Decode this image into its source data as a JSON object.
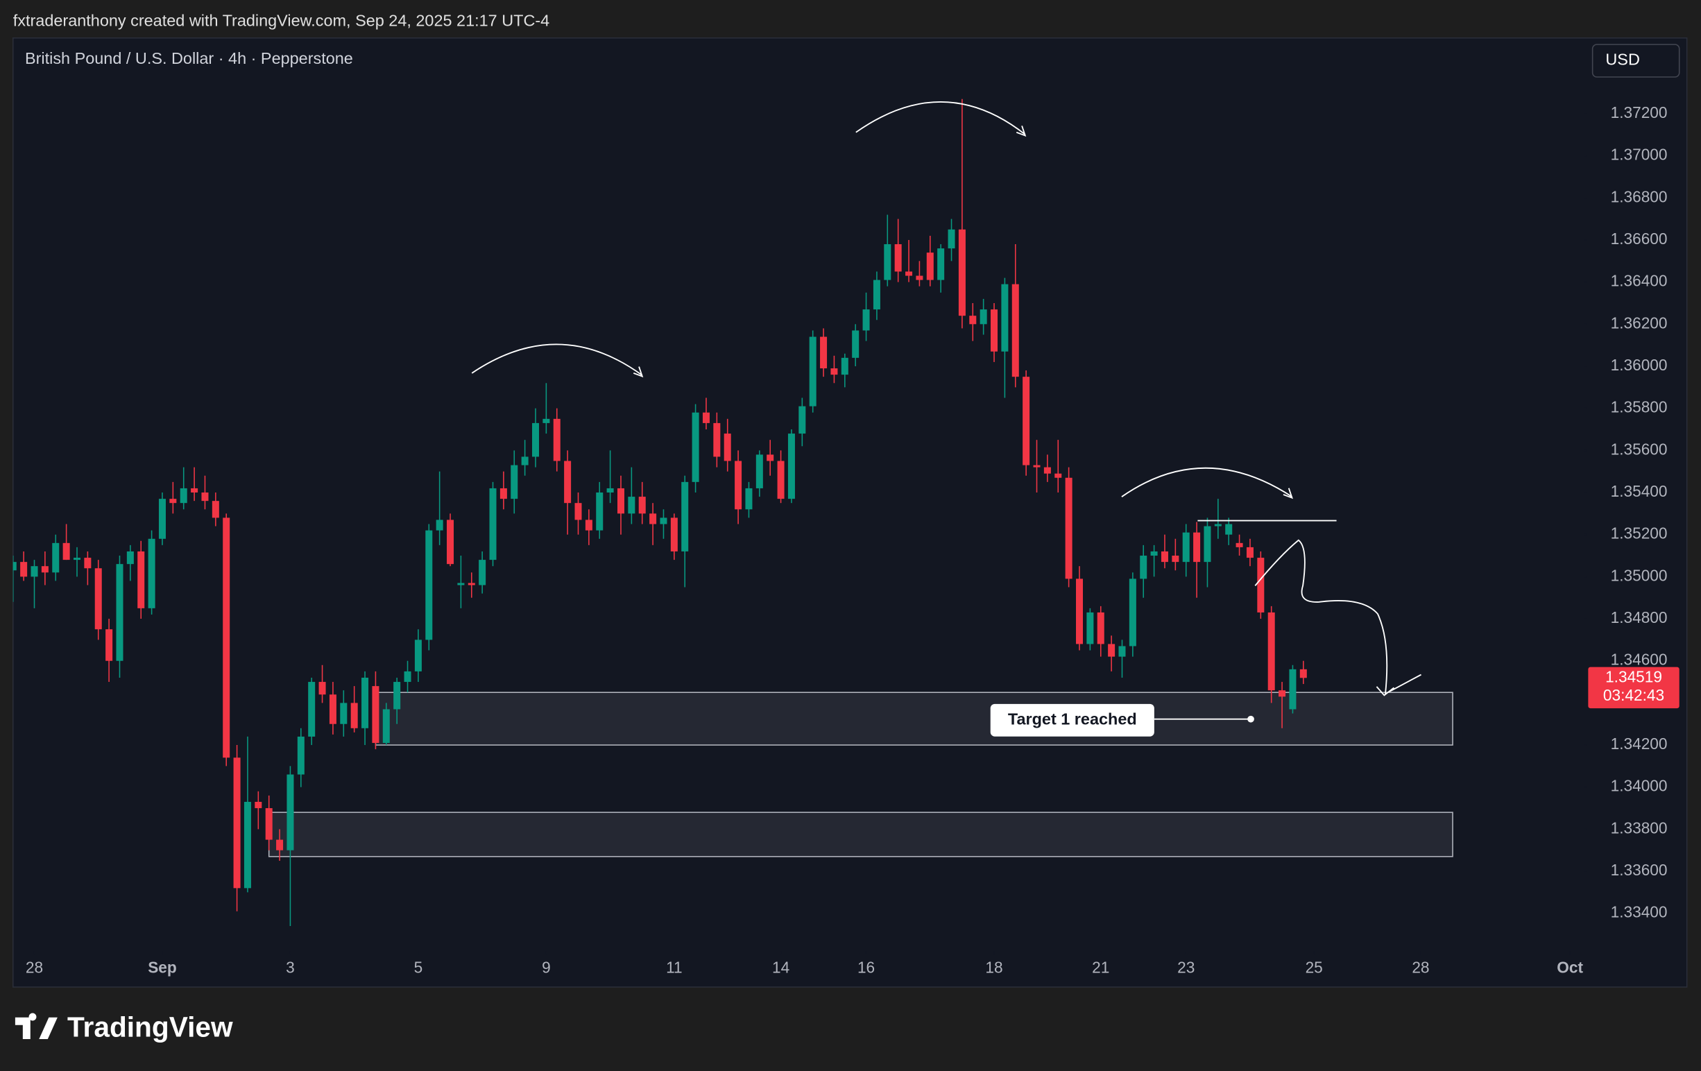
{
  "header": {
    "attribution": "fxtraderanthony created with TradingView.com, Sep 24, 2025 21:17 UTC-4",
    "logo": "TradingView"
  },
  "chart_data": {
    "type": "candlestick",
    "title": "British Pound / U.S. Dollar · 4h · Pepperstone",
    "currency": "USD",
    "up_color": "#089981",
    "down_color": "#f23645",
    "xlim": [
      0,
      147.3
    ],
    "xticks": [
      {
        "value": 2,
        "label": "28"
      },
      {
        "value": 14,
        "label": "Sep"
      },
      {
        "value": 26,
        "label": "3"
      },
      {
        "value": 38,
        "label": "5"
      },
      {
        "value": 50,
        "label": "9"
      },
      {
        "value": 62,
        "label": "11"
      },
      {
        "value": 72,
        "label": "14"
      },
      {
        "value": 80,
        "label": "16"
      },
      {
        "value": 92,
        "label": "18"
      },
      {
        "value": 102,
        "label": "21"
      },
      {
        "value": 110,
        "label": "23"
      },
      {
        "value": 122,
        "label": "25"
      },
      {
        "value": 132,
        "label": "28"
      },
      {
        "value": 146,
        "label": "Oct"
      }
    ],
    "ylim": [
      1.3322,
      1.3756
    ],
    "yticks": [
      {
        "value": 1.372,
        "label": "1.37200"
      },
      {
        "value": 1.37,
        "label": "1.37000"
      },
      {
        "value": 1.368,
        "label": "1.36800"
      },
      {
        "value": 1.366,
        "label": "1.36600"
      },
      {
        "value": 1.364,
        "label": "1.36400"
      },
      {
        "value": 1.362,
        "label": "1.36200"
      },
      {
        "value": 1.36,
        "label": "1.36000"
      },
      {
        "value": 1.358,
        "label": "1.35800"
      },
      {
        "value": 1.356,
        "label": "1.35600"
      },
      {
        "value": 1.354,
        "label": "1.35400"
      },
      {
        "value": 1.352,
        "label": "1.35200"
      },
      {
        "value": 1.35,
        "label": "1.35000"
      },
      {
        "value": 1.348,
        "label": "1.34800"
      },
      {
        "value": 1.346,
        "label": "1.34600"
      },
      {
        "value": 1.342,
        "label": "1.34200"
      },
      {
        "value": 1.34,
        "label": "1.34000"
      },
      {
        "value": 1.338,
        "label": "1.33800"
      },
      {
        "value": 1.336,
        "label": "1.33600"
      },
      {
        "value": 1.334,
        "label": "1.33400"
      }
    ],
    "last_price": 1.34519,
    "last_price_color": "#f23645",
    "countdown": "03:42:43",
    "annotation": "Target 1 reached",
    "zones": [
      {
        "x": [
          34,
          135
        ],
        "y": [
          1.3445,
          1.342
        ]
      },
      {
        "x": [
          24,
          135
        ],
        "y": [
          1.3388,
          1.3367
        ]
      }
    ],
    "ohlc": [
      [
        1.3503,
        1.351,
        1.3488,
        1.3507
      ],
      [
        1.3507,
        1.3512,
        1.3498,
        1.35
      ],
      [
        1.35,
        1.3508,
        1.3485,
        1.3505
      ],
      [
        1.3505,
        1.3512,
        1.3496,
        1.3502
      ],
      [
        1.3502,
        1.352,
        1.3498,
        1.3516
      ],
      [
        1.3516,
        1.3525,
        1.3508,
        1.3508
      ],
      [
        1.3508,
        1.3514,
        1.35,
        1.3509
      ],
      [
        1.3509,
        1.3512,
        1.3496,
        1.3504
      ],
      [
        1.3504,
        1.3508,
        1.347,
        1.3475
      ],
      [
        1.3475,
        1.348,
        1.345,
        1.346
      ],
      [
        1.346,
        1.351,
        1.3452,
        1.3506
      ],
      [
        1.3506,
        1.3515,
        1.3498,
        1.3512
      ],
      [
        1.3512,
        1.3517,
        1.348,
        1.3485
      ],
      [
        1.3485,
        1.3522,
        1.3482,
        1.3518
      ],
      [
        1.3518,
        1.354,
        1.3515,
        1.3537
      ],
      [
        1.3537,
        1.3545,
        1.353,
        1.3535
      ],
      [
        1.3535,
        1.3552,
        1.3532,
        1.3542
      ],
      [
        1.3542,
        1.3552,
        1.3536,
        1.354
      ],
      [
        1.354,
        1.3548,
        1.3532,
        1.3536
      ],
      [
        1.3536,
        1.354,
        1.3524,
        1.3528
      ],
      [
        1.3528,
        1.353,
        1.341,
        1.3414
      ],
      [
        1.3414,
        1.342,
        1.3341,
        1.3352
      ],
      [
        1.3352,
        1.3424,
        1.335,
        1.3393
      ],
      [
        1.3393,
        1.3398,
        1.338,
        1.339
      ],
      [
        1.339,
        1.3396,
        1.337,
        1.3375
      ],
      [
        1.3375,
        1.338,
        1.3365,
        1.337
      ],
      [
        1.337,
        1.341,
        1.3334,
        1.3406
      ],
      [
        1.3406,
        1.3428,
        1.34,
        1.3424
      ],
      [
        1.3424,
        1.3452,
        1.342,
        1.345
      ],
      [
        1.345,
        1.3458,
        1.344,
        1.3444
      ],
      [
        1.3444,
        1.345,
        1.3425,
        1.343
      ],
      [
        1.343,
        1.3446,
        1.3424,
        1.344
      ],
      [
        1.344,
        1.3448,
        1.3426,
        1.3428
      ],
      [
        1.3428,
        1.3455,
        1.342,
        1.3452
      ],
      [
        1.3448,
        1.3455,
        1.3418,
        1.3421
      ],
      [
        1.3421,
        1.344,
        1.342,
        1.3437
      ],
      [
        1.3437,
        1.3452,
        1.343,
        1.345
      ],
      [
        1.345,
        1.346,
        1.3445,
        1.3455
      ],
      [
        1.3455,
        1.3475,
        1.345,
        1.347
      ],
      [
        1.347,
        1.3525,
        1.3465,
        1.3522
      ],
      [
        1.3522,
        1.355,
        1.3515,
        1.3527
      ],
      [
        1.3527,
        1.353,
        1.3505,
        1.3506
      ],
      [
        1.3496,
        1.351,
        1.3485,
        1.3497
      ],
      [
        1.3497,
        1.3502,
        1.349,
        1.3496
      ],
      [
        1.3496,
        1.3512,
        1.3492,
        1.3508
      ],
      [
        1.3508,
        1.3545,
        1.3505,
        1.3542
      ],
      [
        1.3542,
        1.355,
        1.3532,
        1.3537
      ],
      [
        1.3537,
        1.356,
        1.353,
        1.3553
      ],
      [
        1.3553,
        1.3565,
        1.3548,
        1.3557
      ],
      [
        1.3557,
        1.358,
        1.3552,
        1.3573
      ],
      [
        1.3573,
        1.3592,
        1.3568,
        1.3575
      ],
      [
        1.3575,
        1.358,
        1.355,
        1.3555
      ],
      [
        1.3555,
        1.356,
        1.352,
        1.3535
      ],
      [
        1.3535,
        1.354,
        1.352,
        1.3527
      ],
      [
        1.3527,
        1.3532,
        1.3515,
        1.3522
      ],
      [
        1.3522,
        1.3545,
        1.3518,
        1.354
      ],
      [
        1.354,
        1.356,
        1.3535,
        1.3542
      ],
      [
        1.3542,
        1.3548,
        1.352,
        1.353
      ],
      [
        1.353,
        1.3552,
        1.3525,
        1.3538
      ],
      [
        1.3538,
        1.3545,
        1.3525,
        1.353
      ],
      [
        1.353,
        1.3535,
        1.3515,
        1.3525
      ],
      [
        1.3525,
        1.3532,
        1.3518,
        1.3528
      ],
      [
        1.3528,
        1.353,
        1.3508,
        1.3512
      ],
      [
        1.3512,
        1.3548,
        1.3495,
        1.3545
      ],
      [
        1.3545,
        1.3582,
        1.354,
        1.3578
      ],
      [
        1.3578,
        1.3585,
        1.357,
        1.3573
      ],
      [
        1.3573,
        1.3578,
        1.3552,
        1.3557
      ],
      [
        1.3568,
        1.3575,
        1.355,
        1.3555
      ],
      [
        1.3555,
        1.356,
        1.3525,
        1.3532
      ],
      [
        1.3532,
        1.3545,
        1.3528,
        1.3542
      ],
      [
        1.3542,
        1.356,
        1.3538,
        1.3558
      ],
      [
        1.3558,
        1.3565,
        1.3548,
        1.3555
      ],
      [
        1.3555,
        1.356,
        1.3535,
        1.3537
      ],
      [
        1.3537,
        1.357,
        1.3535,
        1.3568
      ],
      [
        1.3568,
        1.3585,
        1.3562,
        1.3581
      ],
      [
        1.3581,
        1.3617,
        1.3578,
        1.3614
      ],
      [
        1.3614,
        1.3618,
        1.3595,
        1.3599
      ],
      [
        1.3599,
        1.3605,
        1.3592,
        1.3596
      ],
      [
        1.3596,
        1.3606,
        1.359,
        1.3604
      ],
      [
        1.3604,
        1.362,
        1.36,
        1.3617
      ],
      [
        1.3617,
        1.3635,
        1.3612,
        1.3627
      ],
      [
        1.3627,
        1.3645,
        1.3622,
        1.3641
      ],
      [
        1.3641,
        1.3672,
        1.3638,
        1.3658
      ],
      [
        1.3658,
        1.367,
        1.364,
        1.3645
      ],
      [
        1.3645,
        1.366,
        1.364,
        1.3643
      ],
      [
        1.3643,
        1.365,
        1.3638,
        1.3641
      ],
      [
        1.3654,
        1.3662,
        1.3638,
        1.3641
      ],
      [
        1.3641,
        1.3658,
        1.3635,
        1.3656
      ],
      [
        1.3656,
        1.367,
        1.365,
        1.3665
      ],
      [
        1.3665,
        1.3727,
        1.3618,
        1.3624
      ],
      [
        1.3624,
        1.363,
        1.3612,
        1.362
      ],
      [
        1.362,
        1.3632,
        1.3615,
        1.3627
      ],
      [
        1.3627,
        1.363,
        1.3602,
        1.3607
      ],
      [
        1.3607,
        1.3642,
        1.3585,
        1.3639
      ],
      [
        1.3639,
        1.3658,
        1.359,
        1.3595
      ],
      [
        1.3595,
        1.3598,
        1.3548,
        1.3553
      ],
      [
        1.3553,
        1.3565,
        1.354,
        1.3552
      ],
      [
        1.3552,
        1.3558,
        1.3545,
        1.3549
      ],
      [
        1.3549,
        1.3565,
        1.354,
        1.3547
      ],
      [
        1.3547,
        1.3552,
        1.3495,
        1.3499
      ],
      [
        1.3499,
        1.3505,
        1.3465,
        1.3468
      ],
      [
        1.3468,
        1.3485,
        1.3465,
        1.3483
      ],
      [
        1.3483,
        1.3486,
        1.3462,
        1.3468
      ],
      [
        1.3468,
        1.3472,
        1.3455,
        1.3462
      ],
      [
        1.3462,
        1.347,
        1.3452,
        1.3467
      ],
      [
        1.3467,
        1.3502,
        1.3462,
        1.3499
      ],
      [
        1.3499,
        1.3515,
        1.349,
        1.351
      ],
      [
        1.351,
        1.3515,
        1.35,
        1.3512
      ],
      [
        1.3512,
        1.352,
        1.3504,
        1.3507
      ],
      [
        1.351,
        1.3518,
        1.3503,
        1.3507
      ],
      [
        1.3507,
        1.3525,
        1.35,
        1.3521
      ],
      [
        1.3521,
        1.3526,
        1.349,
        1.3507
      ],
      [
        1.3507,
        1.3528,
        1.3495,
        1.3524
      ],
      [
        1.3524,
        1.3537,
        1.3518,
        1.3525
      ],
      [
        1.352,
        1.3528,
        1.3515,
        1.3525
      ],
      [
        1.3516,
        1.352,
        1.351,
        1.3514
      ],
      [
        1.3514,
        1.3518,
        1.3505,
        1.3509
      ],
      [
        1.3509,
        1.3512,
        1.348,
        1.3483
      ],
      [
        1.3483,
        1.3486,
        1.344,
        1.3446
      ],
      [
        1.3446,
        1.345,
        1.3428,
        1.3443
      ],
      [
        1.3437,
        1.3458,
        1.3435,
        1.3456
      ],
      [
        1.3456,
        1.346,
        1.3449,
        1.34519
      ]
    ]
  }
}
